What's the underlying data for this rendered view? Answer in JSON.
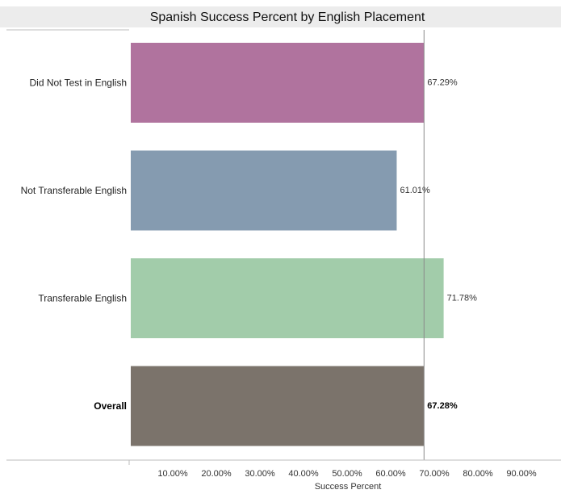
{
  "chart_data": {
    "type": "bar",
    "orientation": "horizontal",
    "title": "Spanish Success Percent by English Placement",
    "xlabel": "Success Percent",
    "ylabel": "",
    "categories": [
      "Did Not Test in English",
      "Not Transferable English",
      "Transferable English",
      "Overall"
    ],
    "values": [
      67.29,
      61.01,
      71.78,
      67.28
    ],
    "value_labels": [
      "67.29%",
      "61.01%",
      "71.78%",
      "67.28%"
    ],
    "bar_colors": [
      "#b0739e",
      "#859bb0",
      "#a2ccaa",
      "#7b736b"
    ],
    "bold_categories": [
      "Overall"
    ],
    "xlim": [
      0,
      100
    ],
    "xticks": [
      10,
      20,
      30,
      40,
      50,
      60,
      70,
      80,
      90
    ],
    "xtick_labels": [
      "10.00%",
      "20.00%",
      "30.00%",
      "40.00%",
      "50.00%",
      "60.00%",
      "70.00%",
      "80.00%",
      "90.00%"
    ],
    "reference_line": 67.28,
    "grid": false,
    "legend": "none"
  }
}
